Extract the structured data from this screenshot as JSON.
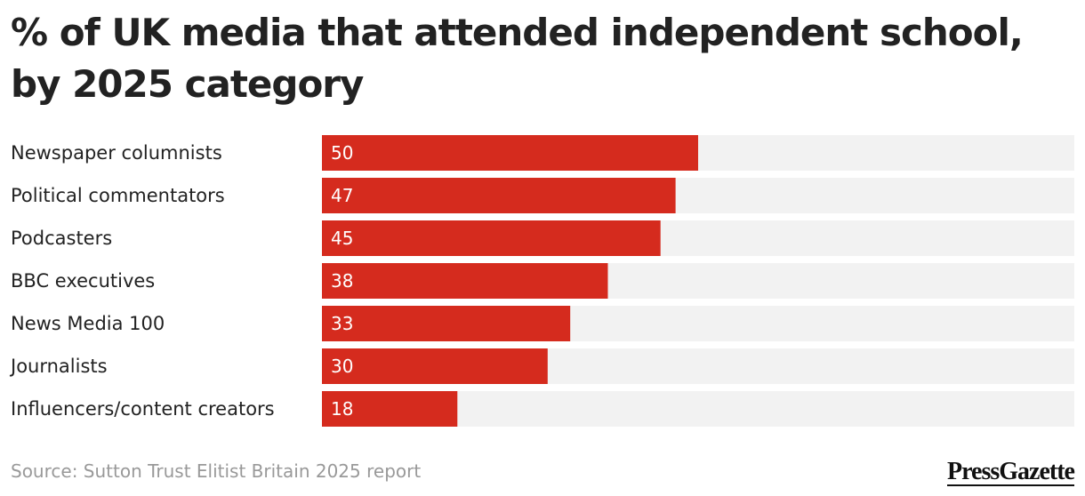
{
  "title": "% of UK media that attended independent school, by 2025 category",
  "source": "Source: Sutton Trust Elitist Britain 2025 report",
  "brand": "PressGazette",
  "colors": {
    "bar": "#d52b1e",
    "track": "#f2f2f2",
    "text": "#222222",
    "source": "#999999"
  },
  "chart_data": {
    "type": "bar",
    "orientation": "horizontal",
    "title": "% of UK media that attended independent school, by 2025 category",
    "xlabel": "",
    "ylabel": "",
    "xlim": [
      0,
      100
    ],
    "grid": false,
    "categories": [
      "Newspaper columnists",
      "Political commentators",
      "Podcasters",
      "BBC executives",
      "News Media 100",
      "Journalists",
      "Influencers/content creators"
    ],
    "values": [
      50,
      47,
      45,
      38,
      33,
      30,
      18
    ]
  }
}
